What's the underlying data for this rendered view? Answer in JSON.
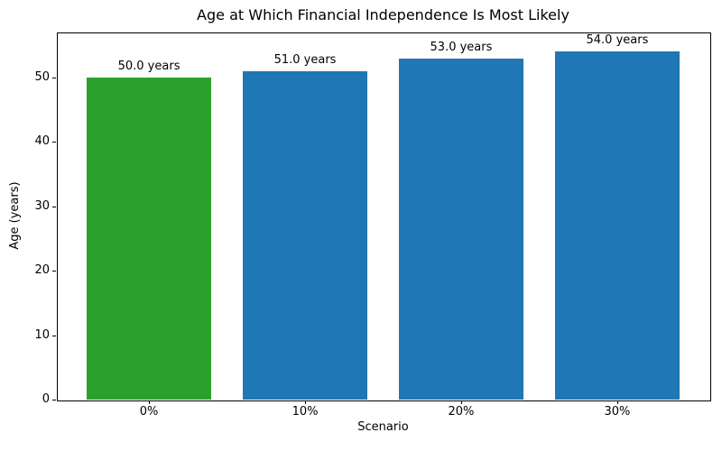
{
  "chart_data": {
    "type": "bar",
    "title": "Age at Which Financial Independence Is Most Likely",
    "xlabel": "Scenario",
    "ylabel": "Age (years)",
    "categories": [
      "0%",
      "10%",
      "20%",
      "30%"
    ],
    "values": [
      50.0,
      51.0,
      53.0,
      54.0
    ],
    "bar_labels": [
      "50.0 years",
      "51.0 years",
      "53.0 years",
      "54.0 years"
    ],
    "bar_colors": [
      "#2ca02c",
      "#1f77b4",
      "#1f77b4",
      "#1f77b4"
    ],
    "ylim": [
      0,
      57
    ],
    "yticks": [
      0,
      10,
      20,
      30,
      40,
      50
    ],
    "xlim": [
      -0.59,
      3.59
    ],
    "bar_width": 0.8,
    "grid": false,
    "legend": null,
    "spine_color": "#000000",
    "text_color": "#000000",
    "background_color": "#ffffff"
  }
}
